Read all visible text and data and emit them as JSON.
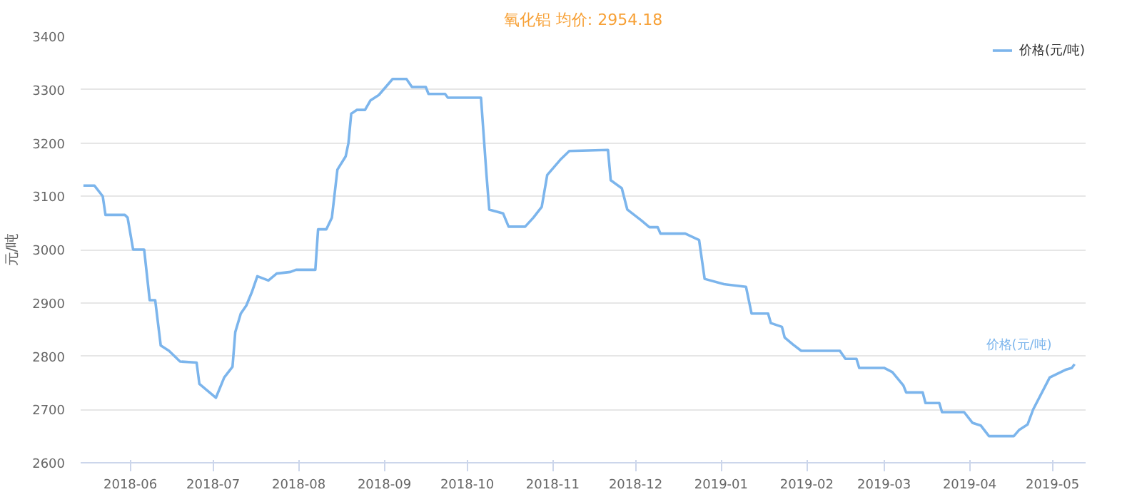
{
  "chart_data": {
    "type": "line",
    "title": "氧化铝 均价: 2954.18",
    "ylabel": "元/吨",
    "xlim": [
      "2018-05-14",
      "2019-05-13"
    ],
    "xticks": [
      {
        "value": "2018-06-01",
        "label": "2018-06"
      },
      {
        "value": "2018-07-01",
        "label": "2018-07"
      },
      {
        "value": "2018-08-01",
        "label": "2018-08"
      },
      {
        "value": "2018-09-01",
        "label": "2018-09"
      },
      {
        "value": "2018-10-01",
        "label": "2018-10"
      },
      {
        "value": "2018-11-01",
        "label": "2018-11"
      },
      {
        "value": "2018-12-01",
        "label": "2018-12"
      },
      {
        "value": "2019-01-01",
        "label": "2019-01"
      },
      {
        "value": "2019-02-01",
        "label": "2019-02"
      },
      {
        "value": "2019-03-01",
        "label": "2019-03"
      },
      {
        "value": "2019-04-01",
        "label": "2019-04"
      },
      {
        "value": "2019-05-01",
        "label": "2019-05"
      }
    ],
    "ylim": [
      2600,
      3400
    ],
    "yticks": [
      2600,
      2700,
      2800,
      2900,
      3000,
      3100,
      3200,
      3300,
      3400
    ],
    "grid": "y",
    "legend": "top right",
    "marker": "none",
    "x": [
      "2018-05-15",
      "2018-05-19",
      "2018-05-22",
      "2018-05-23",
      "2018-05-30",
      "2018-05-31",
      "2018-06-02",
      "2018-06-06",
      "2018-06-08",
      "2018-06-10",
      "2018-06-12",
      "2018-06-15",
      "2018-06-19",
      "2018-06-25",
      "2018-06-26",
      "2018-06-29",
      "2018-07-02",
      "2018-07-05",
      "2018-07-08",
      "2018-07-09",
      "2018-07-11",
      "2018-07-13",
      "2018-07-15",
      "2018-07-17",
      "2018-07-21",
      "2018-07-24",
      "2018-07-29",
      "2018-07-31",
      "2018-08-07",
      "2018-08-08",
      "2018-08-11",
      "2018-08-13",
      "2018-08-15",
      "2018-08-18",
      "2018-08-19",
      "2018-08-20",
      "2018-08-22",
      "2018-08-25",
      "2018-08-27",
      "2018-08-30",
      "2018-09-04",
      "2018-09-09",
      "2018-09-11",
      "2018-09-16",
      "2018-09-17",
      "2018-09-23",
      "2018-09-24",
      "2018-10-06",
      "2018-10-08",
      "2018-10-09",
      "2018-10-14",
      "2018-10-16",
      "2018-10-22",
      "2018-10-25",
      "2018-10-28",
      "2018-10-30",
      "2018-11-04",
      "2018-11-07",
      "2018-11-21",
      "2018-11-22",
      "2018-11-26",
      "2018-11-28",
      "2018-12-03",
      "2018-12-06",
      "2018-12-09",
      "2018-12-10",
      "2018-12-19",
      "2018-12-24",
      "2018-12-26",
      "2019-01-02",
      "2019-01-10",
      "2019-01-12",
      "2019-01-18",
      "2019-01-19",
      "2019-01-23",
      "2019-01-24",
      "2019-01-27",
      "2019-01-30",
      "2019-02-13",
      "2019-02-15",
      "2019-02-19",
      "2019-02-20",
      "2019-03-01",
      "2019-03-04",
      "2019-03-08",
      "2019-03-09",
      "2019-03-15",
      "2019-03-16",
      "2019-03-21",
      "2019-03-22",
      "2019-03-30",
      "2019-04-02",
      "2019-04-05",
      "2019-04-08",
      "2019-04-17",
      "2019-04-19",
      "2019-04-22",
      "2019-04-24",
      "2019-04-30",
      "2019-05-06",
      "2019-05-08",
      "2019-05-09"
    ],
    "series": [
      {
        "name": "价格(元/吨)",
        "color": "#7cb5ec",
        "values": [
          3120,
          3120,
          3100,
          3065,
          3065,
          3060,
          3000,
          3000,
          2905,
          2905,
          2820,
          2810,
          2790,
          2788,
          2748,
          2735,
          2722,
          2760,
          2780,
          2845,
          2880,
          2895,
          2920,
          2950,
          2942,
          2955,
          2958,
          2962,
          2962,
          3038,
          3038,
          3060,
          3150,
          3175,
          3200,
          3255,
          3262,
          3262,
          3280,
          3290,
          3320,
          3320,
          3305,
          3305,
          3292,
          3292,
          3285,
          3285,
          3140,
          3075,
          3068,
          3043,
          3043,
          3060,
          3080,
          3140,
          3170,
          3185,
          3187,
          3130,
          3115,
          3075,
          3055,
          3042,
          3042,
          3030,
          3030,
          3018,
          2945,
          2935,
          2930,
          2880,
          2880,
          2862,
          2855,
          2835,
          2822,
          2810,
          2810,
          2795,
          2795,
          2778,
          2778,
          2770,
          2745,
          2732,
          2732,
          2712,
          2712,
          2695,
          2695,
          2675,
          2670,
          2650,
          2650,
          2662,
          2672,
          2700,
          2760,
          2775,
          2778,
          2785
        ]
      }
    ],
    "annotations": [
      {
        "text": "价格(元/吨)",
        "x": "2019-05-09",
        "y": 2785
      }
    ]
  }
}
